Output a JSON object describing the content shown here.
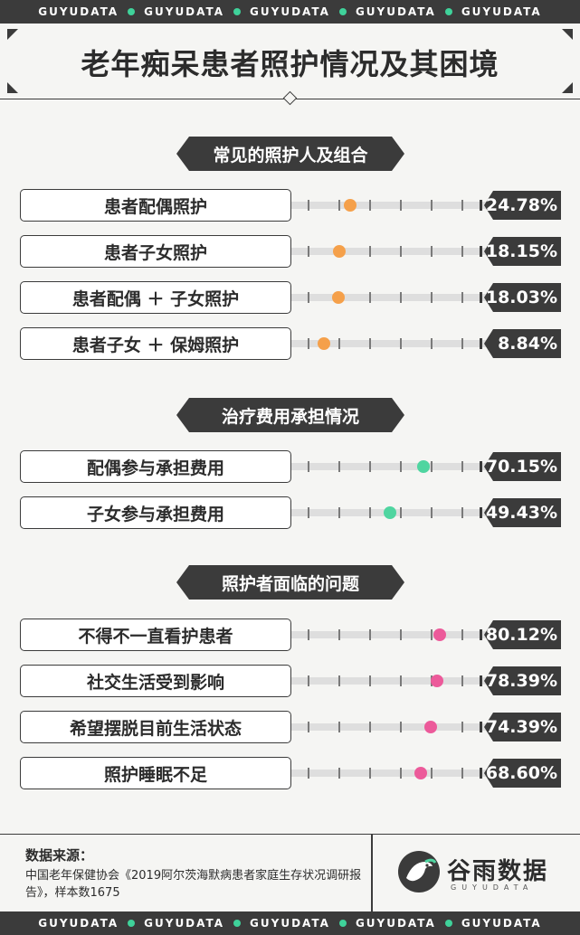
{
  "banner": {
    "word": "GUYUDATA",
    "dot_colors": [
      "#3fd29a",
      "#3fd29a",
      "#3fd29a",
      "#3fd29a"
    ]
  },
  "title": "老年痴呆患者照护情况及其困境",
  "colors": {
    "orange": "#f5a04a",
    "green": "#4fd5a0",
    "pink": "#ec5a9a",
    "dark": "#3b3b3b"
  },
  "chart_data": [
    {
      "type": "bar",
      "title": "常见的照护人及组合",
      "categories": [
        "患者配偶照护",
        "患者子女照护",
        "患者配偶 ＋ 子女照护",
        "患者子女 ＋ 保姆照护"
      ],
      "values": [
        24.78,
        18.15,
        18.03,
        8.84
      ],
      "labels": [
        "24.78%",
        "18.15%",
        "18.03%",
        "8.84%"
      ],
      "color": "#f5a04a",
      "ylim": [
        0,
        100
      ]
    },
    {
      "type": "bar",
      "title": "治疗费用承担情况",
      "categories": [
        "配偶参与承担费用",
        "子女参与承担费用"
      ],
      "values": [
        70.15,
        49.43
      ],
      "labels": [
        "70.15%",
        "49.43%"
      ],
      "color": "#4fd5a0",
      "ylim": [
        0,
        100
      ]
    },
    {
      "type": "bar",
      "title": "照护者面临的问题",
      "categories": [
        "不得不一直看护患者",
        "社交生活受到影响",
        "希望摆脱目前生活状态",
        "照护睡眠不足"
      ],
      "values": [
        80.12,
        78.39,
        74.39,
        68.6
      ],
      "labels": [
        "80.12%",
        "78.39%",
        "74.39%",
        "68.60%"
      ],
      "color": "#ec5a9a",
      "ylim": [
        0,
        100
      ]
    }
  ],
  "footer": {
    "source_label": "数据来源：",
    "source_text": "中国老年保健协会《2019阿尔茨海默病患者家庭生存状况调研报告》，样本数1675",
    "brand_cn": "谷雨数据",
    "brand_en": "GUYUDATA",
    "logo_icon": "bird-icon"
  }
}
